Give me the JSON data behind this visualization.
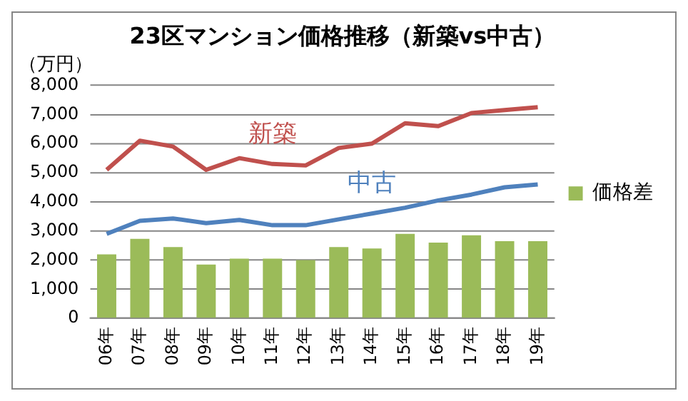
{
  "chart_data": {
    "type": "bar",
    "title": "23区マンション価格推移（新築vs中古）",
    "ylabel": "（万円）",
    "categories": [
      "06年",
      "07年",
      "08年",
      "09年",
      "10年",
      "11年",
      "12年",
      "13年",
      "14年",
      "15年",
      "16年",
      "17年",
      "18年",
      "19年"
    ],
    "series": [
      {
        "name": "新築",
        "type": "line",
        "color": "#c0504d",
        "values": [
          5100,
          6100,
          5900,
          5100,
          5500,
          5300,
          5250,
          5850,
          6000,
          6700,
          6600,
          7050,
          7150,
          7250
        ]
      },
      {
        "name": "中古",
        "type": "line",
        "color": "#4f81bd",
        "values": [
          2900,
          3350,
          3430,
          3270,
          3380,
          3200,
          3200,
          3400,
          3600,
          3800,
          4050,
          4250,
          4500,
          4600
        ]
      },
      {
        "name": "価格差",
        "color": "#9bbb59",
        "values": [
          2200,
          2730,
          2450,
          1850,
          2050,
          2050,
          2000,
          2450,
          2400,
          2900,
          2600,
          2850,
          2650,
          2650
        ]
      }
    ],
    "ylim": [
      0,
      8000
    ],
    "yticks": [
      0,
      {
        "value": 1000,
        "label": "1,000"
      },
      {
        "value": 2000,
        "label": "2,000"
      },
      {
        "value": 3000,
        "label": "3,000"
      },
      {
        "value": 4000,
        "label": "4,000"
      },
      {
        "value": 5000,
        "label": "5,000"
      },
      {
        "value": 6000,
        "label": "6,000"
      },
      {
        "value": 7000,
        "label": "7,000"
      },
      {
        "value": 8000,
        "label": "8,000"
      }
    ],
    "grid": "y",
    "legend": "right"
  }
}
